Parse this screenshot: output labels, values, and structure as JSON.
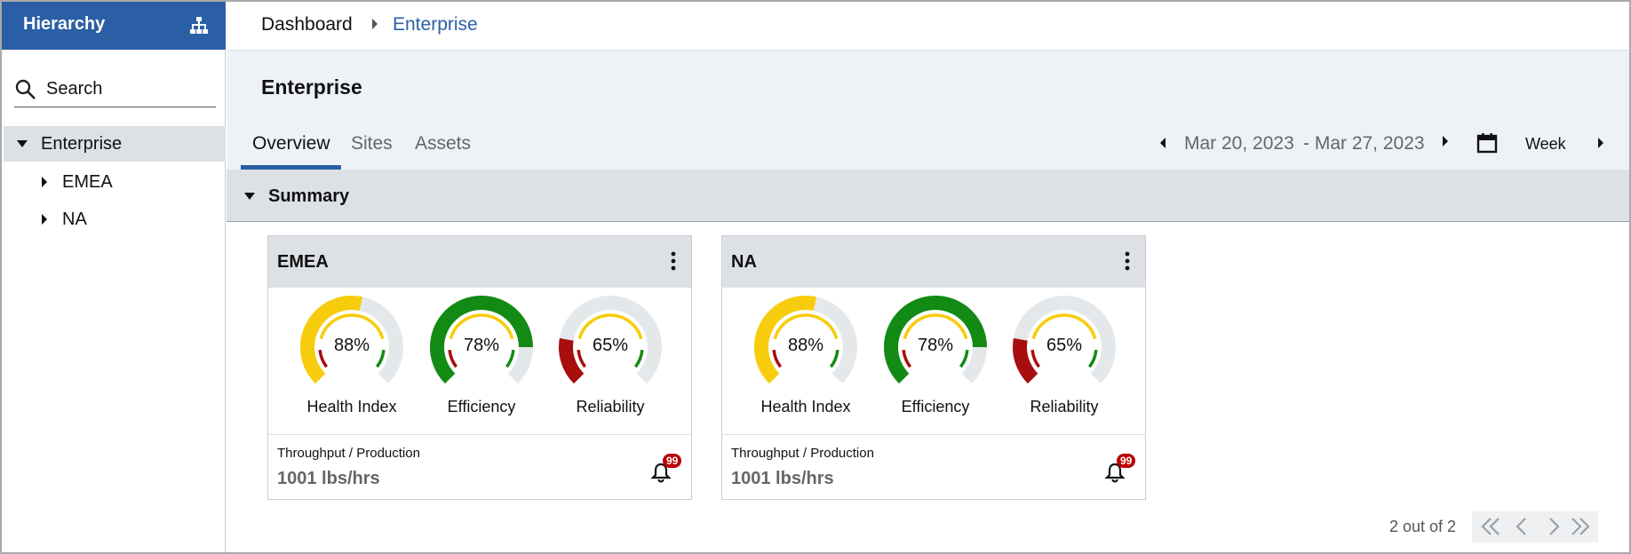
{
  "sidebar": {
    "title": "Hierarchy",
    "search_placeholder": "Search",
    "tree": [
      {
        "label": "Enterprise"
      },
      {
        "label": "EMEA"
      },
      {
        "label": "NA"
      }
    ]
  },
  "breadcrumb": [
    "Dashboard",
    "Enterprise"
  ],
  "page_title": "Enterprise",
  "tabs": [
    "Overview",
    "Sites",
    "Assets"
  ],
  "date_range": {
    "start": "Mar 20, 2023",
    "end": "- Mar 27, 2023",
    "period": "Week"
  },
  "section": "Summary",
  "cards": [
    {
      "title": "EMEA",
      "gauges": [
        {
          "label": "Health Index",
          "value": "88%"
        },
        {
          "label": "Efficiency",
          "value": "78%"
        },
        {
          "label": "Reliability",
          "value": "65%"
        }
      ],
      "metric_label": "Throughput / Production",
      "metric_value": "1001 lbs/hrs",
      "badge": "99"
    },
    {
      "title": "NA",
      "gauges": [
        {
          "label": "Health Index",
          "value": "88%"
        },
        {
          "label": "Efficiency",
          "value": "78%"
        },
        {
          "label": "Reliability",
          "value": "65%"
        }
      ],
      "metric_label": "Throughput / Production",
      "metric_value": "1001 lbs/hrs",
      "badge": "99"
    }
  ],
  "pagination": "2 out of 2"
}
